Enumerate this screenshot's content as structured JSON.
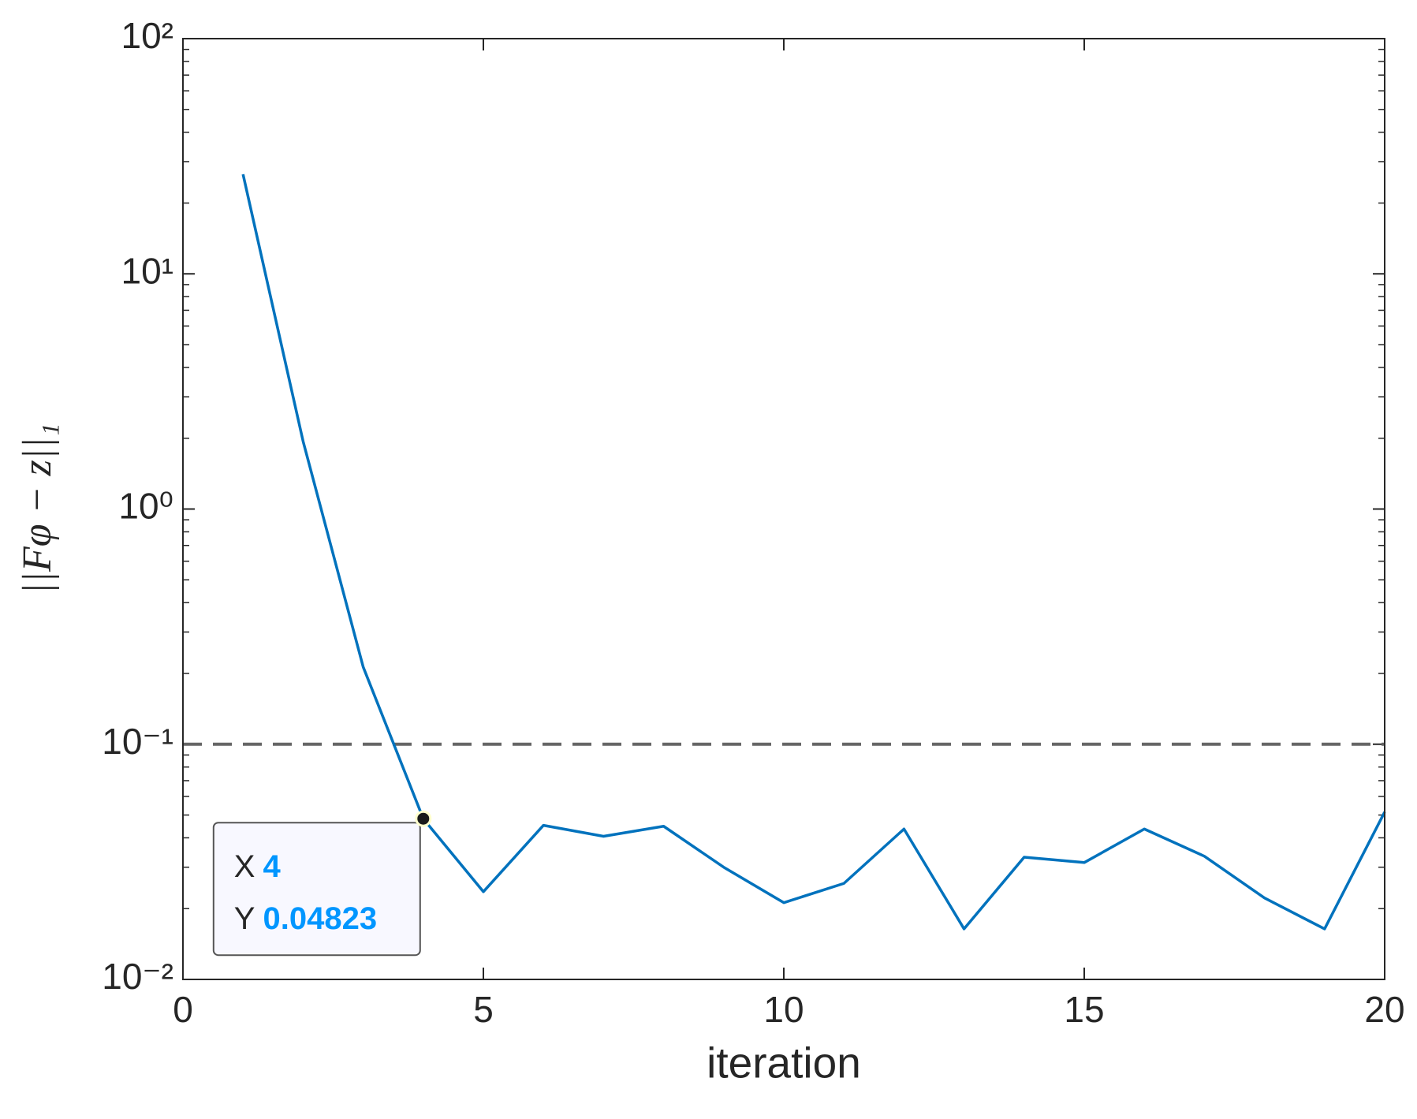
{
  "chart_data": {
    "type": "line",
    "xlabel": "iteration",
    "ylabel": "||Fφ − z||₁",
    "x": [
      1,
      2,
      3,
      4,
      5,
      6,
      7,
      8,
      9,
      10,
      11,
      12,
      13,
      14,
      15,
      16,
      17,
      18,
      19,
      20
    ],
    "series": [
      {
        "color": "#0072bd",
        "values": [
          26.5,
          1.94,
          0.213,
          0.04823,
          0.0236,
          0.0452,
          0.0406,
          0.0448,
          0.03,
          0.0212,
          0.0256,
          0.0436,
          0.0164,
          0.0331,
          0.0314,
          0.0436,
          0.0334,
          0.0222,
          0.0164,
          0.0515
        ]
      }
    ],
    "threshold": {
      "value": 0.1,
      "color": "#666666"
    },
    "xlim": [
      0,
      20
    ],
    "xticks": [
      0,
      5,
      10,
      15,
      20
    ],
    "ylim": [
      0.01,
      100
    ],
    "yscale": "log",
    "yticks": [
      {
        "value": 0.01,
        "label": "10⁻²"
      },
      {
        "value": 0.1,
        "label": "10⁻¹"
      },
      {
        "value": 1,
        "label": "10⁰"
      },
      {
        "value": 10,
        "label": "10¹"
      },
      {
        "value": 100,
        "label": "10²"
      }
    ],
    "datatip": {
      "x_label": "X",
      "x": 4,
      "y_label": "Y",
      "y": 0.04823
    }
  }
}
